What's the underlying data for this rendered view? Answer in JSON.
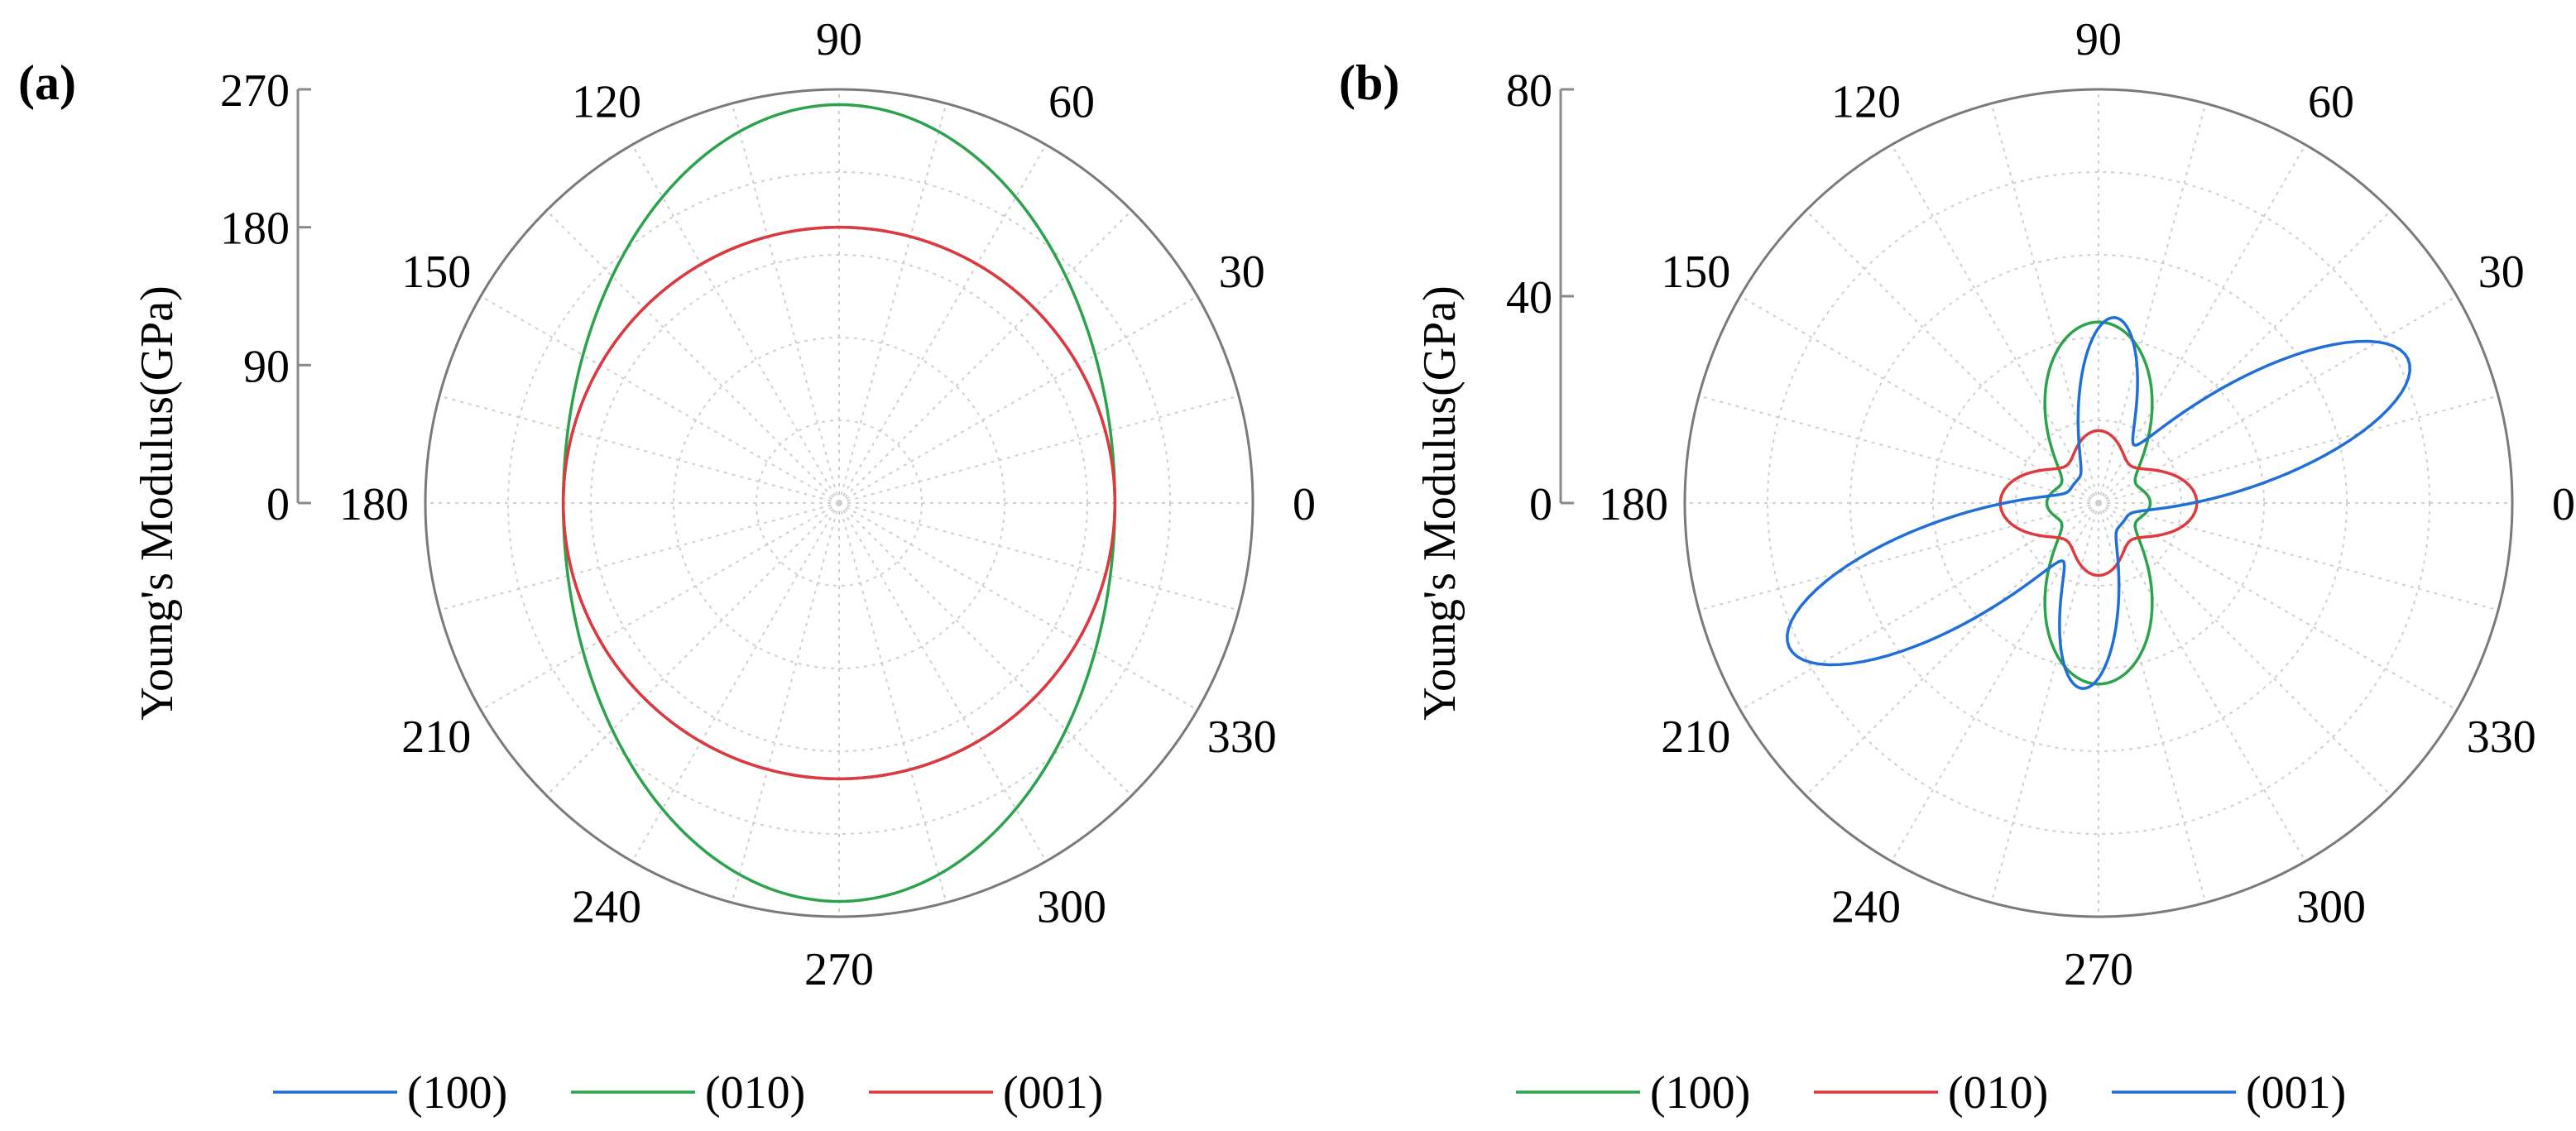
{
  "colors": {
    "blue": "#1f6fd6",
    "green": "#2ca24c",
    "red": "#e0393b",
    "outer_circle": "#7a7a7a",
    "grid": "#cfcfcf"
  },
  "chart_data": [
    {
      "type": "polar-line",
      "panel_label": "(a)",
      "ylabel": "Young's Modulus(GPa)",
      "r_ticks": [
        0,
        90,
        180,
        270
      ],
      "r_tick_labels": [
        "0",
        "90",
        "180",
        "270"
      ],
      "rlim": [
        0,
        270
      ],
      "angle_ticks_deg": [
        0,
        30,
        60,
        90,
        120,
        150,
        180,
        210,
        240,
        270,
        300,
        330
      ],
      "angle_tick_labels": [
        "0",
        "30",
        "60",
        "90",
        "120",
        "150",
        "180",
        "210",
        "240",
        "270",
        "300",
        "330"
      ],
      "grid": true,
      "legend_position": "bottom",
      "series": [
        {
          "name": "(100)",
          "color": "blue",
          "model": "cos2",
          "a": 180,
          "b": 180,
          "c": 0,
          "visible": "hidden beneath (001)"
        },
        {
          "name": "(010)",
          "color": "green",
          "model": "cos2",
          "a": 180,
          "b": 260,
          "c": 0
        },
        {
          "name": "(001)",
          "color": "red",
          "model": "cos2",
          "a": 180,
          "b": 180,
          "c": 0
        }
      ]
    },
    {
      "type": "polar-line",
      "panel_label": "(b)",
      "ylabel": "Young's Modulus(GPa)",
      "r_ticks": [
        0,
        40,
        80
      ],
      "r_tick_labels": [
        "0",
        "40",
        "80"
      ],
      "rlim": [
        0,
        80
      ],
      "angle_ticks_deg": [
        0,
        30,
        60,
        90,
        120,
        150,
        180,
        210,
        240,
        270,
        300,
        330
      ],
      "angle_tick_labels": [
        "0",
        "30",
        "60",
        "90",
        "120",
        "150",
        "180",
        "210",
        "240",
        "270",
        "300",
        "330"
      ],
      "grid": true,
      "legend_position": "bottom",
      "series": [
        {
          "name": "(100)",
          "color": "green",
          "model": "cos4",
          "a": 10,
          "b": 35,
          "c": 2
        },
        {
          "name": "(010)",
          "color": "red",
          "model": "cos4",
          "a": 19,
          "b": 14,
          "c": 6
        },
        {
          "name": "(001)",
          "color": "blue",
          "model": "lobes",
          "lobes": [
            {
              "center_deg": 25,
              "peak": 66,
              "width": 14
            },
            {
              "center_deg": 205,
              "peak": 66,
              "width": 14
            },
            {
              "center_deg": 85,
              "peak": 36,
              "width": 13
            },
            {
              "center_deg": 265,
              "peak": 36,
              "width": 13
            }
          ],
          "base": 6
        }
      ]
    }
  ]
}
